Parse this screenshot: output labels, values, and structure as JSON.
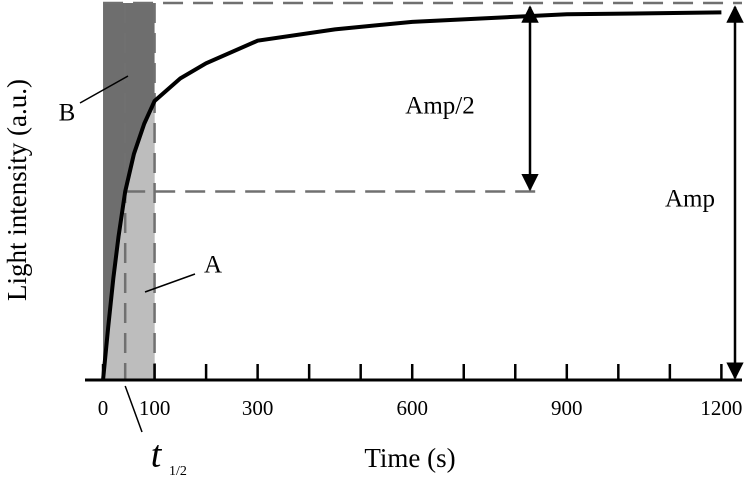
{
  "chart_data": {
    "type": "line",
    "xlabel": "Time (s)",
    "ylabel": "Light intensity (a.u.)",
    "x": [
      0,
      10,
      20,
      30,
      43,
      60,
      80,
      100,
      150,
      200,
      300,
      450,
      600,
      900,
      1200
    ],
    "values": [
      0,
      0.14,
      0.27,
      0.38,
      0.5,
      0.6,
      0.68,
      0.74,
      0.8,
      0.84,
      0.9,
      0.93,
      0.95,
      0.97,
      0.975
    ],
    "color": "#000000",
    "xlim": [
      -35,
      1240
    ],
    "ylim": [
      0,
      1
    ],
    "xticks": [
      0,
      100,
      300,
      600,
      900,
      1200
    ],
    "xminorticks": [
      200,
      400,
      500,
      700,
      800,
      1000,
      1100
    ],
    "shaded_interval": [
      0,
      100
    ],
    "shade_colors": {
      "B": "#6e6e6e",
      "A": "#bdbdbd"
    },
    "t_half": 43,
    "amplitude": 1,
    "half_level": 0.5,
    "annotations": {
      "A": "A",
      "B": "B",
      "amp": "Amp",
      "amp_half": "Amp/2",
      "t_half_base": "t",
      "t_half_sub": "1/2"
    }
  }
}
